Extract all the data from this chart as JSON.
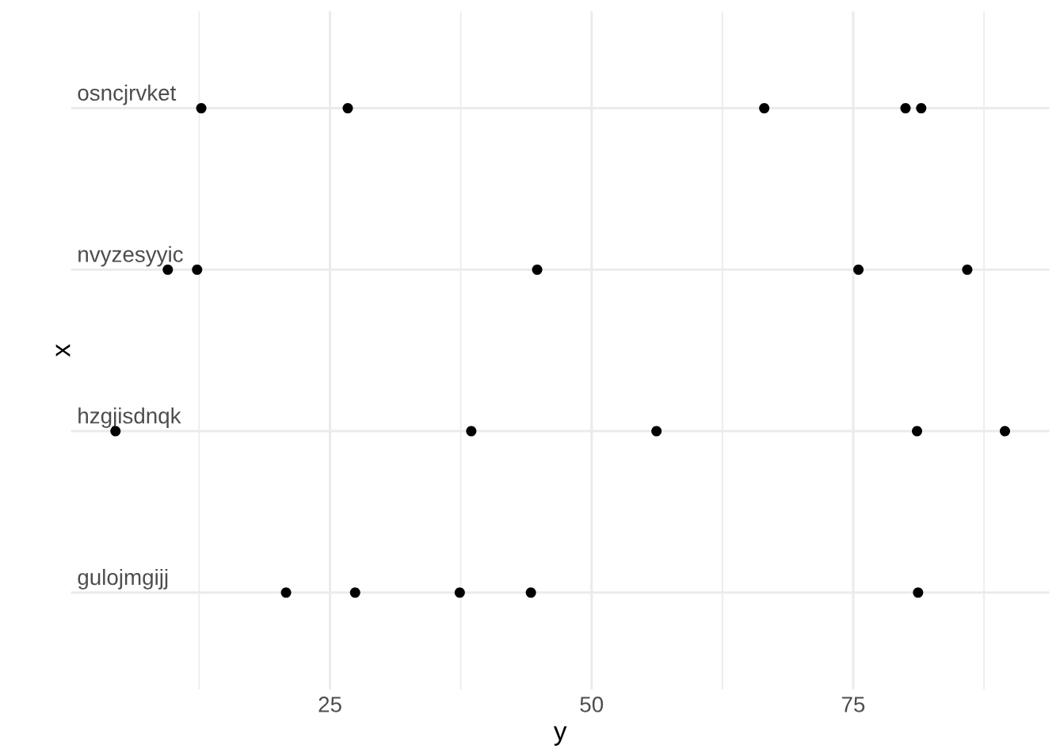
{
  "chart_data": {
    "type": "scatter",
    "orientation": "horizontal",
    "xlabel": "y",
    "ylabel": "x",
    "categories": [
      "osncjrvket",
      "nvyzesyyic",
      "hzgjisdnqk",
      "gulojmgijj"
    ],
    "series": [
      {
        "color": "#000000",
        "values": [
          12.7,
          9.5,
          4.5,
          20.8
        ]
      },
      {
        "color": "#000000",
        "values": [
          26.7,
          12.3,
          38.5,
          27.4
        ]
      },
      {
        "color": "#000000",
        "values": [
          66.5,
          44.8,
          56.2,
          37.4
        ]
      },
      {
        "color": "#000000",
        "values": [
          80.0,
          75.5,
          81.1,
          44.2
        ]
      },
      {
        "color": "#000000",
        "values": [
          81.5,
          85.9,
          89.5,
          81.2
        ]
      }
    ],
    "xlim": [
      0.25,
      93.75
    ],
    "xticks": [
      {
        "value": 12.5,
        "label": null
      },
      25,
      {
        "value": 37.5,
        "label": null
      },
      50,
      {
        "value": 62.5,
        "label": null
      },
      75,
      {
        "value": 87.5,
        "label": null
      }
    ],
    "grid": true,
    "marker": "circle",
    "legend": false
  }
}
